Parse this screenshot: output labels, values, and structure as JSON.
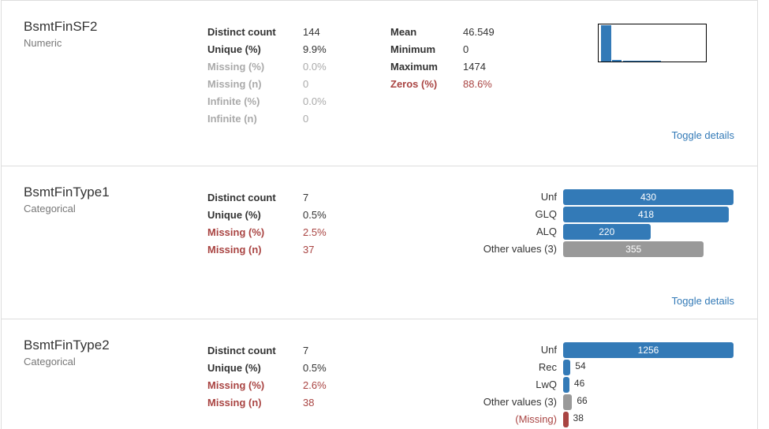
{
  "variables": [
    {
      "name": "BsmtFinSF2",
      "type": "Numeric",
      "tables": [
        [
          {
            "label": "Distinct count",
            "value": "144",
            "status": "normal"
          },
          {
            "label": "Unique (%)",
            "value": "9.9%",
            "status": "normal"
          },
          {
            "label": "Missing (%)",
            "value": "0.0%",
            "status": "muted"
          },
          {
            "label": "Missing (n)",
            "value": "0",
            "status": "muted"
          },
          {
            "label": "Infinite (%)",
            "value": "0.0%",
            "status": "muted"
          },
          {
            "label": "Infinite (n)",
            "value": "0",
            "status": "muted"
          }
        ],
        [
          {
            "label": "Mean",
            "value": "46.549",
            "status": "normal"
          },
          {
            "label": "Minimum",
            "value": "0",
            "status": "normal"
          },
          {
            "label": "Maximum",
            "value": "1474",
            "status": "normal"
          },
          {
            "label": "Zeros (%)",
            "value": "88.6%",
            "status": "alert"
          }
        ]
      ],
      "histogram": true,
      "toggle": "Toggle details"
    },
    {
      "name": "BsmtFinType1",
      "type": "Categorical",
      "tables": [
        [
          {
            "label": "Distinct count",
            "value": "7",
            "status": "normal"
          },
          {
            "label": "Unique (%)",
            "value": "0.5%",
            "status": "normal"
          },
          {
            "label": "Missing (%)",
            "value": "2.5%",
            "status": "alert"
          },
          {
            "label": "Missing (n)",
            "value": "37",
            "status": "alert"
          }
        ]
      ],
      "freq": [
        {
          "label": "Unf",
          "count": 430,
          "kind": "value"
        },
        {
          "label": "GLQ",
          "count": 418,
          "kind": "value"
        },
        {
          "label": "ALQ",
          "count": 220,
          "kind": "value"
        },
        {
          "label": "Other values (3)",
          "count": 355,
          "kind": "other"
        }
      ],
      "toggle": "Toggle details"
    },
    {
      "name": "BsmtFinType2",
      "type": "Categorical",
      "tables": [
        [
          {
            "label": "Distinct count",
            "value": "7",
            "status": "normal"
          },
          {
            "label": "Unique (%)",
            "value": "0.5%",
            "status": "normal"
          },
          {
            "label": "Missing (%)",
            "value": "2.6%",
            "status": "alert"
          },
          {
            "label": "Missing (n)",
            "value": "38",
            "status": "alert"
          }
        ]
      ],
      "freq": [
        {
          "label": "Unf",
          "count": 1256,
          "kind": "value"
        },
        {
          "label": "Rec",
          "count": 54,
          "kind": "value"
        },
        {
          "label": "LwQ",
          "count": 46,
          "kind": "value"
        },
        {
          "label": "Other values (3)",
          "count": 66,
          "kind": "other"
        },
        {
          "label": "(Missing)",
          "count": 38,
          "kind": "missing"
        }
      ]
    }
  ]
}
